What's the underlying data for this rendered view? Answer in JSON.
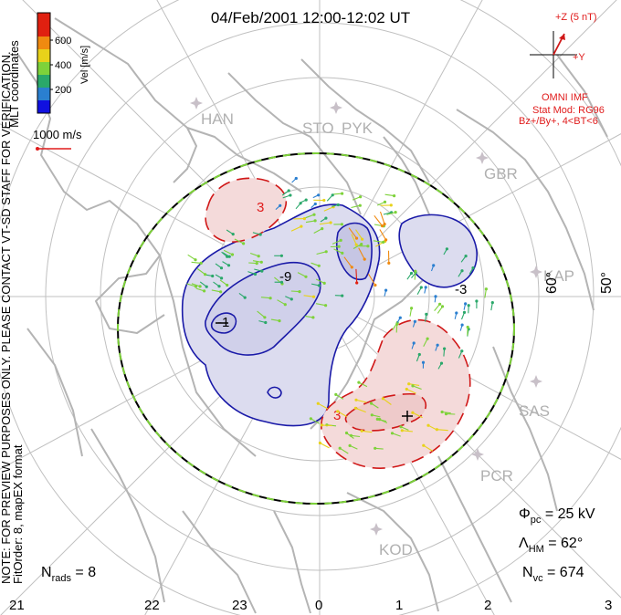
{
  "title": "04/Feb/2001 12:00-12:02 UT",
  "colorbar": {
    "label": "Vel [m/s]",
    "ticks": [
      "200",
      "400",
      "600"
    ],
    "colors": [
      "#1010e0",
      "#2a7fd0",
      "#2aa86a",
      "#7ed23a",
      "#e8d21a",
      "#f08a10",
      "#e02010"
    ]
  },
  "coord_label": "MLT coordinates",
  "scale_vector_label": "1000 m/s",
  "note_text": "NOTE: FOR PREVIEW PURPOSES ONLY. PLEASE CONTACT VT-SD STAFF FOR VERIFICATION.",
  "fit_text": "FitOrder: 8, mapEX format",
  "imf": {
    "z_label": "+Z (5 nT)",
    "y_label": "+Y",
    "source": "OMNI IMF",
    "model_line1": "Stat Mod: RG96",
    "model_line2": "Bz+/By+, 4<BT<6"
  },
  "stations": [
    "HAN",
    "STO",
    "PYK",
    "GBR",
    "KAP",
    "SAS",
    "PCR",
    "KOD"
  ],
  "lat_labels": [
    "60°",
    "50°"
  ],
  "mlt_ticks": [
    "21",
    "22",
    "23",
    "0",
    "1",
    "2",
    "3"
  ],
  "contour_labels": [
    "-9",
    "-1",
    "-3",
    "3",
    "3"
  ],
  "stats": {
    "phi_sym": "Φ",
    "phi_sub": "pc",
    "phi_val": " = 25 kV",
    "lam_sym": "Λ",
    "lam_sub": "HM",
    "lam_val": " = 62°",
    "nvc_sym": "N",
    "nvc_sub": "vc",
    "nvc_val": " = 674",
    "nrads_sym": "N",
    "nrads_sub": "rads",
    "nrads_val": " = 8"
  },
  "colors": {
    "negative_contour": "#1a1aa8",
    "positive_contour": "#d01818",
    "negative_fill": "#dcdcef",
    "positive_fill": "#f4dada",
    "grid": "#c0c0c0",
    "land": "#b4b4b4",
    "boundary_dash": "#7ed23a"
  },
  "vectors": {
    "regions": [
      {
        "name": "west",
        "cx": 300,
        "cy": 300,
        "rx": 90,
        "ry": 55,
        "dir": 200,
        "speed": 0.45
      },
      {
        "name": "north",
        "cx": 380,
        "cy": 240,
        "rx": 70,
        "ry": 40,
        "dir": 170,
        "speed": 0.55
      },
      {
        "name": "throat",
        "cx": 410,
        "cy": 280,
        "rx": 28,
        "ry": 45,
        "dir": 250,
        "speed": 0.85
      },
      {
        "name": "east",
        "cx": 480,
        "cy": 330,
        "rx": 60,
        "ry": 70,
        "dir": 110,
        "speed": 0.35
      },
      {
        "name": "south",
        "cx": 410,
        "cy": 460,
        "rx": 80,
        "ry": 45,
        "dir": 20,
        "speed": 0.55
      },
      {
        "name": "northwest",
        "cx": 350,
        "cy": 215,
        "rx": 50,
        "ry": 25,
        "dir": 150,
        "speed": 0.3
      }
    ]
  }
}
